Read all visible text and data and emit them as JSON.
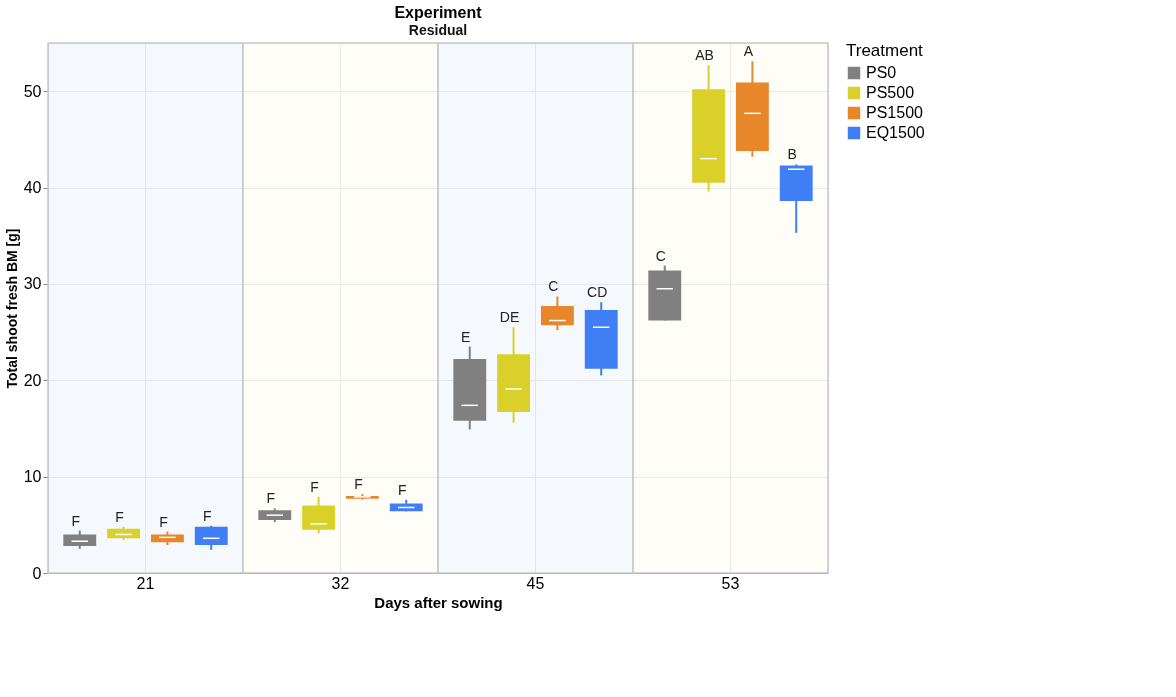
{
  "chart_data": {
    "type": "box",
    "title": "Experiment",
    "subtitle": "Residual",
    "xlabel": "Days after sowing",
    "ylabel": "Total shoot fresh BM [g]",
    "legend_title": "Treatment",
    "categories": [
      "21",
      "32",
      "45",
      "53"
    ],
    "ylim": [
      0,
      55
    ],
    "yticks": [
      0,
      10,
      20,
      30,
      40,
      50
    ],
    "grid": true,
    "legend": "top right",
    "bands": [
      {
        "axis": "x",
        "from": "21",
        "to": "21",
        "color": "#eef4fb"
      },
      {
        "axis": "x",
        "from": "32",
        "to": "32",
        "color": "#fdfbf3"
      },
      {
        "axis": "x",
        "from": "45",
        "to": "45",
        "color": "#eef4fb"
      },
      {
        "axis": "x",
        "from": "53",
        "to": "53",
        "color": "#fdfbf3"
      }
    ],
    "series": [
      {
        "name": "PS0",
        "color": "#808080",
        "boxes": [
          {
            "low": 2.5,
            "q1": 2.8,
            "median": 3.3,
            "q3": 4.0,
            "high": 4.4
          },
          {
            "low": 5.3,
            "q1": 5.5,
            "median": 6.0,
            "q3": 6.5,
            "high": 6.7
          },
          {
            "low": 14.9,
            "q1": 15.8,
            "median": 17.4,
            "q3": 22.2,
            "high": 23.5
          },
          {
            "low": 26.2,
            "q1": 26.2,
            "median": 29.5,
            "q3": 31.4,
            "high": 31.9
          }
        ]
      },
      {
        "name": "PS500",
        "color": "#d9d12a",
        "boxes": [
          {
            "low": 3.4,
            "q1": 3.6,
            "median": 4.0,
            "q3": 4.6,
            "high": 4.8
          },
          {
            "low": 4.1,
            "q1": 4.5,
            "median": 5.1,
            "q3": 7.0,
            "high": 7.9
          },
          {
            "low": 15.6,
            "q1": 16.7,
            "median": 19.1,
            "q3": 22.7,
            "high": 25.5
          },
          {
            "low": 39.6,
            "q1": 40.5,
            "median": 43.0,
            "q3": 50.2,
            "high": 52.7
          }
        ]
      },
      {
        "name": "PS1500",
        "color": "#e8862a",
        "boxes": [
          {
            "low": 2.9,
            "q1": 3.2,
            "median": 3.7,
            "q3": 4.0,
            "high": 4.3
          },
          {
            "low": 7.6,
            "q1": 7.7,
            "median": 7.9,
            "q3": 8.0,
            "high": 8.2
          },
          {
            "low": 25.2,
            "q1": 25.7,
            "median": 26.2,
            "q3": 27.7,
            "high": 28.7
          },
          {
            "low": 43.2,
            "q1": 43.8,
            "median": 47.7,
            "q3": 50.9,
            "high": 53.1
          }
        ]
      },
      {
        "name": "EQ1500",
        "color": "#3f7ef5",
        "boxes": [
          {
            "low": 2.4,
            "q1": 2.9,
            "median": 3.6,
            "q3": 4.8,
            "high": 4.9
          },
          {
            "low": 6.4,
            "q1": 6.4,
            "median": 6.8,
            "q3": 7.2,
            "high": 7.6
          },
          {
            "low": 20.5,
            "q1": 21.2,
            "median": 25.5,
            "q3": 27.3,
            "high": 28.1
          },
          {
            "low": 35.3,
            "q1": 38.6,
            "median": 41.9,
            "q3": 42.3,
            "high": 42.4
          }
        ]
      }
    ],
    "annotations": [
      "F",
      "F",
      "F",
      "F",
      "F",
      "F",
      "F",
      "F",
      "E",
      "DE",
      "C",
      "CD",
      "C",
      "AB",
      "A",
      "B"
    ]
  }
}
